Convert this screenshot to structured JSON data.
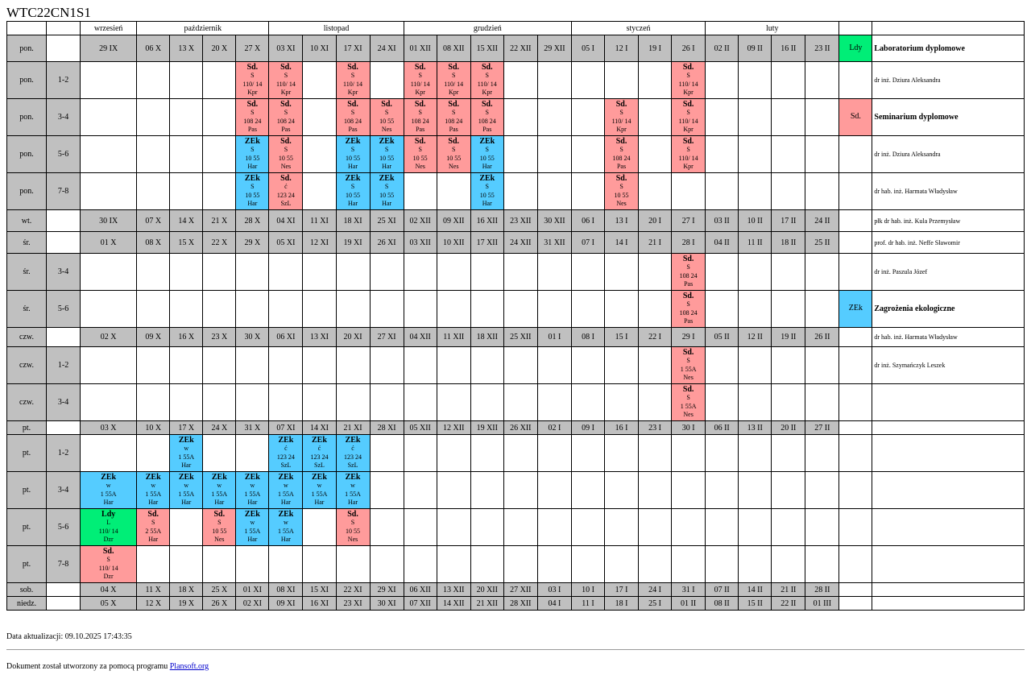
{
  "title": "WTC22CN1S1",
  "months": [
    {
      "label": "wrzesień",
      "span": 1
    },
    {
      "label": "październik",
      "span": 4
    },
    {
      "label": "listopad",
      "span": 4
    },
    {
      "label": "grudzień",
      "span": 5
    },
    {
      "label": "styczeń",
      "span": 4
    },
    {
      "label": "luty",
      "span": 4
    }
  ],
  "rows": [
    {
      "type": "date",
      "day": "pon.",
      "dates": [
        "29 IX",
        "06 X",
        "13 X",
        "20 X",
        "27 X",
        "03 XI",
        "10 XI",
        "17 XI",
        "24 XI",
        "01 XII",
        "08 XII",
        "15 XII",
        "22 XII",
        "29 XII",
        "05 I",
        "12 I",
        "19 I",
        "26 I",
        "02 II",
        "09 II",
        "16 II",
        "23 II"
      ]
    },
    {
      "type": "slot",
      "day": "pon.",
      "slot": "1-2",
      "events": {
        "4": [
          "r",
          "Sd.",
          "S",
          "110/ 14",
          "Kpr"
        ],
        "5": [
          "r",
          "Sd.",
          "S",
          "110/ 14",
          "Kpr"
        ],
        "7": [
          "r",
          "Sd.",
          "S",
          "110/ 14",
          "Kpr"
        ],
        "9": [
          "r",
          "Sd.",
          "S",
          "110/ 14",
          "Kpr"
        ],
        "10": [
          "r",
          "Sd.",
          "S",
          "110/ 14",
          "Kpr"
        ],
        "11": [
          "r",
          "Sd.",
          "S",
          "110/ 14",
          "Kpr"
        ],
        "17": [
          "r",
          "Sd.",
          "S",
          "110/ 14",
          "Kpr"
        ]
      }
    },
    {
      "type": "slot",
      "day": "pon.",
      "slot": "3-4",
      "events": {
        "4": [
          "r",
          "Sd.",
          "S",
          "108 24",
          "Pas"
        ],
        "5": [
          "r",
          "Sd.",
          "S",
          "108 24",
          "Pas"
        ],
        "7": [
          "r",
          "Sd.",
          "S",
          "108 24",
          "Pas"
        ],
        "8": [
          "r",
          "Sd.",
          "S",
          "10 55",
          "Nes"
        ],
        "9": [
          "r",
          "Sd.",
          "S",
          "108 24",
          "Pas"
        ],
        "10": [
          "r",
          "Sd.",
          "S",
          "108 24",
          "Pas"
        ],
        "11": [
          "r",
          "Sd.",
          "S",
          "108 24",
          "Pas"
        ],
        "15": [
          "r",
          "Sd.",
          "S",
          "110/ 14",
          "Kpr"
        ],
        "17": [
          "r",
          "Sd.",
          "S",
          "110/ 14",
          "Kpr"
        ]
      }
    },
    {
      "type": "slot",
      "day": "pon.",
      "slot": "5-6",
      "events": {
        "4": [
          "b",
          "ZEk",
          "S",
          "10 55",
          "Har"
        ],
        "5": [
          "r",
          "Sd.",
          "S",
          "10 55",
          "Nes"
        ],
        "7": [
          "b",
          "ZEk",
          "S",
          "10 55",
          "Har"
        ],
        "8": [
          "b",
          "ZEk",
          "S",
          "10 55",
          "Har"
        ],
        "9": [
          "r",
          "Sd.",
          "S",
          "10 55",
          "Nes"
        ],
        "10": [
          "r",
          "Sd.",
          "S",
          "10 55",
          "Nes"
        ],
        "11": [
          "b",
          "ZEk",
          "S",
          "10 55",
          "Har"
        ],
        "15": [
          "r",
          "Sd.",
          "S",
          "108 24",
          "Pas"
        ],
        "17": [
          "r",
          "Sd.",
          "S",
          "110/ 14",
          "Kpr"
        ]
      }
    },
    {
      "type": "slot",
      "day": "pon.",
      "slot": "7-8",
      "events": {
        "4": [
          "b",
          "ZEk",
          "S",
          "10 55",
          "Har"
        ],
        "5": [
          "r",
          "Sd.",
          "ć",
          "123 24",
          "SzL"
        ],
        "7": [
          "b",
          "ZEk",
          "S",
          "10 55",
          "Har"
        ],
        "8": [
          "b",
          "ZEk",
          "S",
          "10 55",
          "Har"
        ],
        "11": [
          "b",
          "ZEk",
          "S",
          "10 55",
          "Har"
        ],
        "15": [
          "r",
          "Sd.",
          "S",
          "10 55",
          "Nes"
        ]
      }
    },
    {
      "type": "date",
      "day": "wt.",
      "dates": [
        "30 IX",
        "07 X",
        "14 X",
        "21 X",
        "28 X",
        "04 XI",
        "11 XI",
        "18 XI",
        "25 XI",
        "02 XII",
        "09 XII",
        "16 XII",
        "23 XII",
        "30 XII",
        "06 I",
        "13 I",
        "20 I",
        "27 I",
        "03 II",
        "10 II",
        "17 II",
        "24 II"
      ]
    },
    {
      "type": "date",
      "day": "śr.",
      "dates": [
        "01 X",
        "08 X",
        "15 X",
        "22 X",
        "29 X",
        "05 XI",
        "12 XI",
        "19 XI",
        "26 XI",
        "03 XII",
        "10 XII",
        "17 XII",
        "24 XII",
        "31 XII",
        "07 I",
        "14 I",
        "21 I",
        "28 I",
        "04 II",
        "11 II",
        "18 II",
        "25 II"
      ]
    },
    {
      "type": "slot",
      "day": "śr.",
      "slot": "3-4",
      "events": {
        "17": [
          "r",
          "Sd.",
          "S",
          "108 24",
          "Pas"
        ]
      }
    },
    {
      "type": "slot",
      "day": "śr.",
      "slot": "5-6",
      "events": {
        "17": [
          "r",
          "Sd.",
          "S",
          "108 24",
          "Pas"
        ]
      }
    },
    {
      "type": "date",
      "day": "czw.",
      "dates": [
        "02 X",
        "09 X",
        "16 X",
        "23 X",
        "30 X",
        "06 XI",
        "13 XI",
        "20 XI",
        "27 XI",
        "04 XII",
        "11 XII",
        "18 XII",
        "25 XII",
        "01 I",
        "08 I",
        "15 I",
        "22 I",
        "29 I",
        "05 II",
        "12 II",
        "19 II",
        "26 II"
      ]
    },
    {
      "type": "slot",
      "day": "czw.",
      "slot": "1-2",
      "events": {
        "17": [
          "r",
          "Sd.",
          "S",
          "1 55A",
          "Nes"
        ]
      }
    },
    {
      "type": "slot",
      "day": "czw.",
      "slot": "3-4",
      "events": {
        "17": [
          "r",
          "Sd.",
          "S",
          "1 55A",
          "Nes"
        ]
      }
    },
    {
      "type": "date",
      "day": "pt.",
      "dates": [
        "03 X",
        "10 X",
        "17 X",
        "24 X",
        "31 X",
        "07 XI",
        "14 XI",
        "21 XI",
        "28 XI",
        "05 XII",
        "12 XII",
        "19 XII",
        "26 XII",
        "02 I",
        "09 I",
        "16 I",
        "23 I",
        "30 I",
        "06 II",
        "13 II",
        "20 II",
        "27 II"
      ]
    },
    {
      "type": "slot",
      "day": "pt.",
      "slot": "1-2",
      "events": {
        "2": [
          "b",
          "ZEk",
          "w",
          "1 55A",
          "Har"
        ],
        "5": [
          "b",
          "ZEk",
          "ć",
          "123 24",
          "SzL"
        ],
        "6": [
          "b",
          "ZEk",
          "ć",
          "123 24",
          "SzL"
        ],
        "7": [
          "b",
          "ZEk",
          "ć",
          "123 24",
          "SzL"
        ]
      }
    },
    {
      "type": "slot",
      "day": "pt.",
      "slot": "3-4",
      "events": {
        "0": [
          "b",
          "ZEk",
          "w",
          "1 55A",
          "Har"
        ],
        "1": [
          "b",
          "ZEk",
          "w",
          "1 55A",
          "Har"
        ],
        "2": [
          "b",
          "ZEk",
          "w",
          "1 55A",
          "Har"
        ],
        "3": [
          "b",
          "ZEk",
          "w",
          "1 55A",
          "Har"
        ],
        "4": [
          "b",
          "ZEk",
          "w",
          "1 55A",
          "Har"
        ],
        "5": [
          "b",
          "ZEk",
          "w",
          "1 55A",
          "Har"
        ],
        "6": [
          "b",
          "ZEk",
          "w",
          "1 55A",
          "Har"
        ],
        "7": [
          "b",
          "ZEk",
          "w",
          "1 55A",
          "Har"
        ]
      }
    },
    {
      "type": "slot",
      "day": "pt.",
      "slot": "5-6",
      "events": {
        "0": [
          "gr",
          "Ldy",
          "L",
          "110/ 14",
          "Dzr"
        ],
        "1": [
          "r",
          "Sd.",
          "S",
          "2 55A",
          "Har"
        ],
        "3": [
          "r",
          "Sd.",
          "S",
          "10 55",
          "Nes"
        ],
        "4": [
          "b",
          "ZEk",
          "w",
          "1 55A",
          "Har"
        ],
        "5": [
          "b",
          "ZEk",
          "w",
          "1 55A",
          "Har"
        ],
        "7": [
          "r",
          "Sd.",
          "S",
          "10 55",
          "Nes"
        ]
      }
    },
    {
      "type": "slot",
      "day": "pt.",
      "slot": "7-8",
      "events": {
        "0": [
          "r",
          "Sd.",
          "S",
          "110/ 14",
          "Dzr"
        ]
      }
    },
    {
      "type": "date",
      "day": "sob.",
      "dates": [
        "04 X",
        "11 X",
        "18 X",
        "25 X",
        "01 XI",
        "08 XI",
        "15 XI",
        "22 XI",
        "29 XI",
        "06 XII",
        "13 XII",
        "20 XII",
        "27 XII",
        "03 I",
        "10 I",
        "17 I",
        "24 I",
        "31 I",
        "07 II",
        "14 II",
        "21 II",
        "28 II"
      ]
    },
    {
      "type": "date",
      "day": "niedz.",
      "dates": [
        "05 X",
        "12 X",
        "19 X",
        "26 X",
        "02 XI",
        "09 XI",
        "16 XI",
        "23 XI",
        "30 XI",
        "07 XII",
        "14 XII",
        "21 XII",
        "28 XII",
        "04 I",
        "11 I",
        "18 I",
        "25 I",
        "01 II",
        "08 II",
        "15 II",
        "22 II",
        "01 III"
      ]
    }
  ],
  "legend": [
    {
      "code": "Ldy",
      "color": "gr",
      "text": "Laboratorium dyplomowe",
      "bold": true
    },
    {
      "code": "",
      "color": "",
      "text": "dr inż. Dziura Aleksandra",
      "bold": false
    },
    {
      "code": "Sd.",
      "color": "r",
      "text": "Seminarium dyplomowe",
      "bold": true
    },
    {
      "code": "",
      "color": "",
      "text": "dr inż. Dziura Aleksandra",
      "bold": false
    },
    {
      "code": "",
      "color": "",
      "text": "dr hab. inż. Harmata Władysław",
      "bold": false
    },
    {
      "code": "",
      "color": "",
      "text": "płk dr hab. inż. Kula Przemysław",
      "bold": false
    },
    {
      "code": "",
      "color": "",
      "text": "prof. dr hab. inż. Neffe Sławomir",
      "bold": false
    },
    {
      "code": "",
      "color": "",
      "text": "dr inż. Paszula Józef",
      "bold": false
    },
    {
      "code": "ZEk",
      "color": "b",
      "text": "Zagrożenia ekologiczne",
      "bold": true
    },
    {
      "code": "",
      "color": "",
      "text": "dr hab. inż. Harmata Władysław",
      "bold": false
    },
    {
      "code": "",
      "color": "",
      "text": "dr inż. Szymańczyk Leszek",
      "bold": false
    },
    {
      "code": "",
      "color": "",
      "text": "",
      "bold": false
    },
    {
      "code": "",
      "color": "",
      "text": "",
      "bold": false
    },
    {
      "code": "",
      "color": "",
      "text": "",
      "bold": false
    },
    {
      "code": "",
      "color": "",
      "text": "",
      "bold": false
    },
    {
      "code": "",
      "color": "",
      "text": "",
      "bold": false
    },
    {
      "code": "",
      "color": "",
      "text": "",
      "bold": false
    },
    {
      "code": "",
      "color": "",
      "text": "",
      "bold": false
    },
    {
      "code": "",
      "color": "",
      "text": "",
      "bold": false
    },
    {
      "code": "",
      "color": "",
      "text": "",
      "bold": false
    }
  ],
  "updated": "Data aktualizacji: 09.10.2025 17:43:35",
  "footer": {
    "text": "Dokument został utworzony za pomocą programu ",
    "link": "Plansoft.org"
  }
}
